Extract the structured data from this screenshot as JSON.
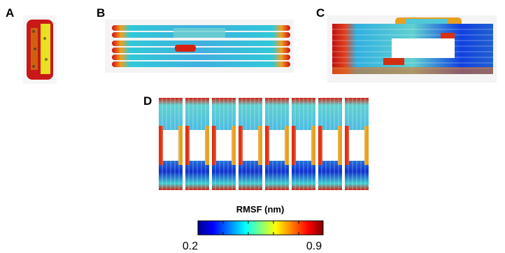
{
  "panels": [
    {
      "label": "A"
    },
    {
      "label": "B"
    },
    {
      "label": "C"
    },
    {
      "label": "D"
    }
  ],
  "colorbar": {
    "title": "RMSF (nm)",
    "min_label": "0.2",
    "max_label": "0.9"
  }
}
